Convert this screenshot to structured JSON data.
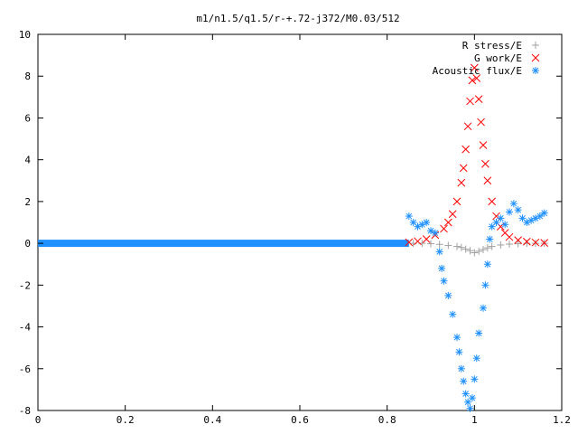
{
  "chart_data": {
    "type": "scatter",
    "title": "m1/n1.5/q1.5/r-+.72-j372/M0.03/512",
    "xlabel": "",
    "ylabel": "",
    "xlim": [
      0,
      1.2
    ],
    "ylim": [
      -8,
      10
    ],
    "xticks": [
      "0",
      "0.2",
      "0.4",
      "0.6",
      "0.8",
      "1",
      "1.2"
    ],
    "yticks": [
      "-8",
      "-6",
      "-4",
      "-2",
      "0",
      "2",
      "4",
      "6",
      "8",
      "10"
    ],
    "legend_position": "top-right",
    "series": [
      {
        "name": "R stress/E",
        "marker": "+",
        "color": "#a0a0a0",
        "x": [
          0.86,
          0.88,
          0.9,
          0.92,
          0.94,
          0.96,
          0.97,
          0.98,
          0.99,
          1.0,
          1.01,
          1.02,
          1.03,
          1.04,
          1.06,
          1.08,
          1.1,
          1.12,
          1.14,
          1.16
        ],
        "y": [
          0.0,
          0.0,
          -0.02,
          -0.05,
          -0.1,
          -0.15,
          -0.2,
          -0.28,
          -0.35,
          -0.45,
          -0.38,
          -0.3,
          -0.22,
          -0.15,
          -0.08,
          -0.04,
          -0.02,
          0.0,
          0.0,
          0.0
        ]
      },
      {
        "name": "G work/E",
        "marker": "x",
        "color": "#ff0000",
        "x": [
          0.85,
          0.87,
          0.89,
          0.91,
          0.93,
          0.94,
          0.95,
          0.96,
          0.97,
          0.975,
          0.98,
          0.985,
          0.99,
          0.995,
          1.0,
          1.005,
          1.01,
          1.015,
          1.02,
          1.025,
          1.03,
          1.04,
          1.05,
          1.06,
          1.07,
          1.08,
          1.1,
          1.12,
          1.14,
          1.16
        ],
        "y": [
          0.05,
          0.1,
          0.2,
          0.4,
          0.7,
          1.0,
          1.4,
          2.0,
          2.9,
          3.6,
          4.5,
          5.6,
          6.8,
          7.8,
          8.4,
          7.9,
          6.9,
          5.8,
          4.7,
          3.8,
          3.0,
          2.0,
          1.3,
          0.8,
          0.5,
          0.3,
          0.15,
          0.08,
          0.04,
          0.02
        ]
      },
      {
        "name": "Acoustic flux/E",
        "marker": "*",
        "color": "#1e90ff",
        "x": [
          0.85,
          0.86,
          0.87,
          0.88,
          0.89,
          0.9,
          0.91,
          0.92,
          0.925,
          0.93,
          0.94,
          0.95,
          0.96,
          0.965,
          0.97,
          0.975,
          0.98,
          0.985,
          0.99,
          0.995,
          1.0,
          1.005,
          1.01,
          1.02,
          1.025,
          1.03,
          1.035,
          1.04,
          1.05,
          1.06,
          1.07,
          1.08,
          1.09,
          1.1,
          1.11,
          1.12,
          1.13,
          1.14,
          1.15,
          1.16
        ],
        "y": [
          1.3,
          1.0,
          0.8,
          0.9,
          1.0,
          0.6,
          0.5,
          -0.4,
          -1.2,
          -1.8,
          -2.5,
          -3.4,
          -4.5,
          -5.2,
          -6.0,
          -6.6,
          -7.2,
          -7.6,
          -7.9,
          -7.4,
          -6.5,
          -5.5,
          -4.3,
          -3.1,
          -2.0,
          -1.0,
          0.2,
          0.8,
          1.0,
          1.2,
          0.9,
          1.5,
          1.9,
          1.6,
          1.2,
          1.0,
          1.1,
          1.2,
          1.3,
          1.45
        ]
      }
    ]
  }
}
